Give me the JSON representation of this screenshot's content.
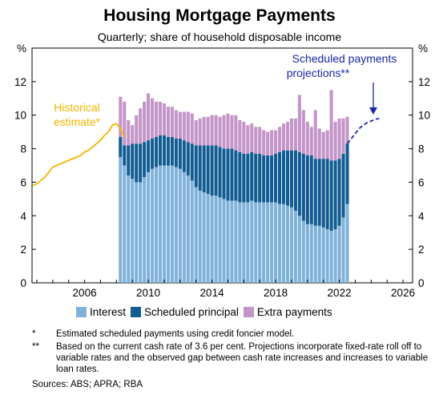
{
  "title": "Housing Mortgage Payments",
  "subtitle": "Quarterly; share of household disposable income",
  "chart_data": {
    "type": "bar",
    "title": "Housing Mortgage Payments",
    "subtitle": "Quarterly; share of household disposable income",
    "unit": "%",
    "ylim": [
      0,
      14
    ],
    "yticks": [
      "0",
      "2",
      "4",
      "6",
      "8",
      "10",
      "12"
    ],
    "xlim": [
      2002.7,
      2026.6
    ],
    "xticks": [
      "2006",
      "2010",
      "2014",
      "2018",
      "2022",
      "2026"
    ],
    "grid": false,
    "legend_position": "bottom",
    "colors": {
      "interest": "#7fb2da",
      "principal": "#115c92",
      "extra": "#c495c8",
      "historical": "#f4b400",
      "projection": "#1a27a8"
    },
    "bar_start": 2008.25,
    "bar_step": 0.25,
    "series": [
      {
        "name": "Interest",
        "values": [
          7.5,
          7.0,
          6.4,
          6.2,
          6.0,
          6.0,
          6.3,
          6.6,
          6.8,
          6.9,
          7.0,
          7.0,
          7.0,
          7.0,
          6.9,
          6.8,
          6.6,
          6.4,
          6.1,
          5.7,
          5.5,
          5.4,
          5.3,
          5.2,
          5.2,
          5.1,
          5.0,
          4.9,
          4.9,
          4.9,
          4.8,
          4.8,
          4.8,
          4.9,
          4.8,
          4.8,
          4.8,
          4.8,
          4.8,
          4.8,
          4.7,
          4.7,
          4.6,
          4.5,
          4.3,
          4.0,
          3.7,
          3.5,
          3.5,
          3.4,
          3.4,
          3.3,
          3.2,
          3.1,
          3.2,
          3.4,
          3.9,
          4.7
        ]
      },
      {
        "name": "Scheduled principal",
        "values": [
          1.2,
          1.2,
          1.8,
          2.1,
          2.3,
          2.3,
          2.1,
          1.9,
          1.8,
          1.8,
          1.8,
          1.8,
          1.7,
          1.7,
          1.7,
          1.8,
          1.9,
          2.0,
          2.2,
          2.5,
          2.7,
          2.8,
          2.9,
          3.0,
          3.0,
          3.0,
          3.0,
          3.1,
          3.1,
          3.0,
          3.0,
          2.9,
          2.9,
          2.9,
          2.9,
          2.9,
          2.8,
          2.8,
          2.8,
          2.9,
          3.1,
          3.2,
          3.3,
          3.4,
          3.6,
          3.8,
          4.0,
          4.1,
          4.1,
          4.0,
          4.0,
          4.1,
          4.2,
          4.2,
          4.1,
          4.0,
          3.8,
          3.6
        ]
      },
      {
        "name": "Extra payments",
        "values": [
          2.4,
          2.6,
          1.5,
          1.1,
          1.7,
          2.1,
          2.4,
          2.8,
          2.4,
          2.1,
          2.0,
          1.9,
          1.8,
          1.8,
          1.7,
          1.6,
          1.7,
          1.8,
          1.8,
          1.5,
          1.6,
          1.7,
          1.7,
          1.8,
          1.8,
          1.8,
          2.0,
          2.1,
          2.0,
          2.1,
          1.9,
          1.9,
          1.7,
          1.7,
          1.6,
          1.6,
          1.5,
          1.4,
          1.5,
          1.4,
          1.5,
          1.6,
          1.7,
          1.9,
          1.9,
          3.4,
          2.6,
          2.0,
          1.7,
          2.9,
          1.8,
          1.6,
          1.7,
          4.2,
          2.3,
          2.4,
          2.1,
          1.6
        ]
      }
    ],
    "historical_estimate": {
      "name": "Historical estimate*",
      "x": [
        2002.75,
        2003.0,
        2003.25,
        2003.5,
        2003.75,
        2004.0,
        2004.25,
        2004.5,
        2004.75,
        2005.0,
        2005.25,
        2005.5,
        2005.75,
        2006.0,
        2006.25,
        2006.5,
        2006.75,
        2007.0,
        2007.25,
        2007.5,
        2007.75,
        2008.0,
        2008.25,
        2008.5
      ],
      "y": [
        5.8,
        5.9,
        6.1,
        6.3,
        6.6,
        6.9,
        7.0,
        7.1,
        7.2,
        7.3,
        7.4,
        7.5,
        7.6,
        7.8,
        7.9,
        8.1,
        8.3,
        8.5,
        8.8,
        9.0,
        9.4,
        9.5,
        9.2,
        8.7
      ]
    },
    "projection": {
      "name": "Scheduled payments projections**",
      "x": [
        2022.5,
        2022.75,
        2023.0,
        2023.25,
        2023.5,
        2023.75,
        2024.0,
        2024.25,
        2024.5
      ],
      "y": [
        8.3,
        8.6,
        8.9,
        9.2,
        9.4,
        9.55,
        9.65,
        9.75,
        9.8
      ]
    }
  },
  "annotations": {
    "historical": [
      "Historical",
      "estimate*"
    ],
    "projection": [
      "Scheduled payments",
      "projections**"
    ]
  },
  "legend": {
    "interest": "Interest",
    "principal": "Scheduled principal",
    "extra": "Extra payments"
  },
  "notes": [
    {
      "mark": "*",
      "text": "Estimated scheduled payments using credit foncier model."
    },
    {
      "mark": "**",
      "text": "Based on the current cash rate of 3.6 per cent. Projections incorporate fixed-rate roll off to variable rates and the observed gap between cash rate increases and increases to variable loan rates."
    }
  ],
  "sources": "Sources: ABS; APRA; RBA"
}
